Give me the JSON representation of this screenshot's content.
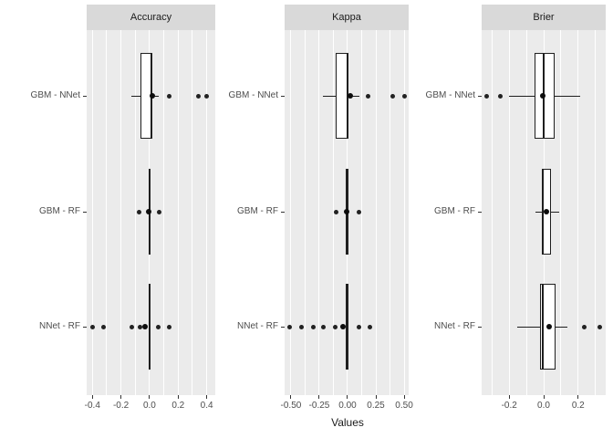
{
  "figure": {
    "xlabel": "Values",
    "colors": {
      "strip_bg": "#d9d9d9",
      "panel_bg": "#ebebeb",
      "grid": "#ffffff",
      "box_line": "#1f1f1f",
      "box_fill": "#ffffff",
      "tick_text": "#4d4d4d",
      "title_text": "#1a1a1a"
    }
  },
  "chart_data": {
    "type": "boxplot",
    "orientation": "horizontal",
    "xlabel": "Values",
    "categories": [
      "GBM - NNet",
      "GBM - RF",
      "NNet - RF"
    ],
    "legend": "none",
    "grid": "on",
    "panels": [
      {
        "title": "Accuracy",
        "xlim": [
          -0.44,
          0.46
        ],
        "major_ticks": [
          -0.4,
          -0.2,
          0.0,
          0.2,
          0.4
        ],
        "tick_labels": [
          "-0.4",
          "-0.2",
          "0.0",
          "0.2",
          "0.4"
        ],
        "gridlines": [
          -0.4,
          -0.3,
          -0.2,
          -0.1,
          0.0,
          0.1,
          0.2,
          0.3,
          0.4
        ],
        "rows": [
          {
            "label": "GBM - NNet",
            "whisker_lo": -0.13,
            "q1": -0.065,
            "median": 0.01,
            "q3": 0.013,
            "whisker_hi": 0.065,
            "dot": 0.022,
            "outliers": [
              0.14,
              0.34,
              0.4
            ]
          },
          {
            "label": "GBM - RF",
            "whisker_lo": -0.004,
            "q1": -0.004,
            "median": 0.0,
            "q3": 0.004,
            "whisker_hi": 0.004,
            "dot": -0.006,
            "outliers": [
              -0.07,
              0.07
            ]
          },
          {
            "label": "NNet - RF",
            "whisker_lo": -0.004,
            "q1": -0.004,
            "median": 0.0,
            "q3": 0.004,
            "whisker_hi": 0.004,
            "dot": -0.032,
            "outliers": [
              -0.4,
              -0.325,
              -0.127,
              -0.064,
              0.064,
              0.14
            ]
          }
        ]
      },
      {
        "title": "Kappa",
        "xlim": [
          -0.556,
          0.54
        ],
        "major_ticks": [
          -0.5,
          -0.25,
          0.0,
          0.25,
          0.5
        ],
        "tick_labels": [
          "-0.50",
          "-0.25",
          "0.00",
          "0.25",
          "0.50"
        ],
        "gridlines": [
          -0.5,
          -0.375,
          -0.25,
          -0.125,
          0.0,
          0.125,
          0.25,
          0.375,
          0.5
        ],
        "rows": [
          {
            "label": "GBM - NNet",
            "whisker_lo": -0.22,
            "q1": -0.105,
            "median": 0.0,
            "q3": 0.0,
            "whisker_hi": 0.105,
            "dot": 0.024,
            "outliers": [
              0.185,
              0.395,
              0.5
            ]
          },
          {
            "label": "GBM - RF",
            "whisker_lo": -0.012,
            "q1": -0.012,
            "median": -0.008,
            "q3": -0.004,
            "whisker_hi": -0.004,
            "dot": -0.008,
            "outliers": [
              -0.097,
              0.097
            ]
          },
          {
            "label": "NNet - RF",
            "whisker_lo": -0.012,
            "q1": -0.012,
            "median": -0.008,
            "q3": -0.004,
            "whisker_hi": -0.004,
            "dot": -0.043,
            "outliers": [
              -0.51,
              -0.41,
              -0.306,
              -0.21,
              -0.105,
              0.097,
              0.194
            ]
          }
        ]
      },
      {
        "title": "Brier",
        "xlim": [
          -0.36,
          0.36
        ],
        "major_ticks": [
          -0.2,
          0.0,
          0.2
        ],
        "tick_labels": [
          "-0.2",
          "0.0",
          "0.2"
        ],
        "gridlines": [
          -0.3,
          -0.2,
          -0.1,
          0.0,
          0.1,
          0.2,
          0.3
        ],
        "rows": [
          {
            "label": "GBM - NNet",
            "whisker_lo": -0.2,
            "q1": -0.053,
            "median": 0.0,
            "q3": 0.063,
            "whisker_hi": 0.21,
            "dot": -0.003,
            "outliers": [
              -0.33,
              -0.25
            ]
          },
          {
            "label": "GBM - RF",
            "whisker_lo": -0.048,
            "q1": -0.005,
            "median": -0.003,
            "q3": 0.042,
            "whisker_hi": 0.09,
            "dot": 0.016,
            "outliers": []
          },
          {
            "label": "NNet - RF",
            "whisker_lo": -0.153,
            "q1": -0.021,
            "median": -0.005,
            "q3": 0.069,
            "whisker_hi": 0.136,
            "dot": 0.03,
            "outliers": [
              0.233,
              0.328
            ]
          }
        ]
      }
    ]
  }
}
